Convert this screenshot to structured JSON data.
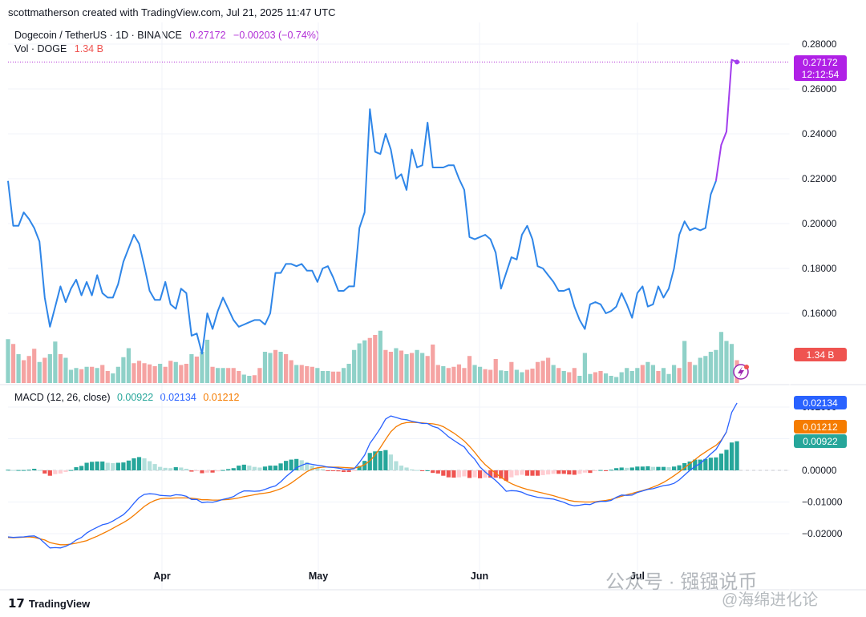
{
  "header": {
    "attribution": "scottmatherson created with TradingView.com, Jul 21, 2025 11:47 UTC"
  },
  "symbol": {
    "name": "Dogecoin / TetherUS · 1D · BINANCE",
    "price": "0.27172",
    "change": "−0.00203 (−0.74%)"
  },
  "volume": {
    "label": "Vol · DOGE",
    "value": "1.34 B"
  },
  "macd": {
    "label": "MACD (12, 26, close)",
    "hist": "0.00922",
    "macd": "0.02134",
    "signal": "0.01212"
  },
  "price_tag": {
    "price": "0.27172",
    "countdown": "12:12:54"
  },
  "vol_tag": "1.34 B",
  "macd_tags": {
    "macd": "0.02134",
    "signal": "0.01212",
    "hist": "0.00922"
  },
  "footer": {
    "brand": "TradingView"
  },
  "watermark": {
    "line1": "公众号 · 镪镪说币",
    "line2": "@海绵进化论"
  },
  "colors": {
    "up": "#26a69a",
    "down": "#ef5350",
    "line": "#2f86e8",
    "line_recent": "#a23ded",
    "macd": "#2962ff",
    "signal": "#f57c00"
  },
  "chart_data": [
    {
      "type": "line",
      "title": "Dogecoin / TetherUS · 1D · BINANCE",
      "x_labels": [
        "Apr",
        "May",
        "Jun",
        "Jul"
      ],
      "y_ticks": [
        0.16,
        0.18,
        0.2,
        0.22,
        0.24,
        0.26,
        0.28
      ],
      "y_tick_labels": [
        "0.16000",
        "0.18000",
        "0.20000",
        "0.22000",
        "0.24000",
        "0.26000",
        "0.28000"
      ],
      "ylim": [
        0.1405,
        0.2875
      ],
      "x": [
        0,
        1,
        2,
        3,
        4,
        5,
        6,
        7,
        8,
        9,
        10,
        11,
        12,
        13,
        14,
        15,
        16,
        17,
        18,
        19,
        20,
        21,
        22,
        23,
        24,
        25,
        26,
        27,
        28,
        29,
        30,
        31,
        32,
        33,
        34,
        35,
        36,
        37,
        38,
        39,
        40,
        41,
        42,
        43,
        44,
        45,
        46,
        47,
        48,
        49,
        50,
        51,
        52,
        53,
        54,
        55,
        56,
        57,
        58,
        59,
        60,
        61,
        62,
        63,
        64,
        65,
        66,
        67,
        68,
        69,
        70,
        71,
        72,
        73,
        74,
        75,
        76,
        77,
        78,
        79,
        80,
        81,
        82,
        83,
        84,
        85,
        86,
        87,
        88,
        89,
        90,
        91,
        92,
        93,
        94,
        95,
        96,
        97,
        98,
        99,
        100,
        101,
        102,
        103,
        104,
        105,
        106,
        107,
        108,
        109,
        110,
        111,
        112,
        113,
        114,
        115,
        116,
        117,
        118,
        119,
        120,
        121,
        122,
        123,
        124,
        125,
        126,
        127,
        128,
        129,
        130,
        131,
        132,
        133,
        134,
        135,
        136,
        137,
        138,
        139
      ],
      "close": [
        0.219,
        0.199,
        0.199,
        0.205,
        0.202,
        0.198,
        0.192,
        0.167,
        0.154,
        0.163,
        0.172,
        0.165,
        0.171,
        0.175,
        0.168,
        0.174,
        0.168,
        0.177,
        0.169,
        0.167,
        0.167,
        0.173,
        0.183,
        0.189,
        0.195,
        0.191,
        0.181,
        0.17,
        0.166,
        0.166,
        0.174,
        0.164,
        0.162,
        0.171,
        0.169,
        0.15,
        0.151,
        0.142,
        0.16,
        0.153,
        0.161,
        0.167,
        0.162,
        0.157,
        0.154,
        0.155,
        0.156,
        0.157,
        0.157,
        0.155,
        0.16,
        0.178,
        0.178,
        0.182,
        0.182,
        0.181,
        0.182,
        0.179,
        0.179,
        0.174,
        0.18,
        0.181,
        0.176,
        0.17,
        0.17,
        0.172,
        0.172,
        0.198,
        0.205,
        0.251,
        0.232,
        0.231,
        0.24,
        0.233,
        0.22,
        0.222,
        0.215,
        0.233,
        0.225,
        0.226,
        0.245,
        0.225,
        0.225,
        0.225,
        0.226,
        0.226,
        0.22,
        0.215,
        0.194,
        0.193,
        0.194,
        0.195,
        0.193,
        0.187,
        0.171,
        0.178,
        0.185,
        0.184,
        0.195,
        0.199,
        0.193,
        0.181,
        0.18,
        0.177,
        0.174,
        0.17,
        0.17,
        0.171,
        0.163,
        0.157,
        0.153,
        0.164,
        0.165,
        0.164,
        0.16,
        0.161,
        0.163,
        0.169,
        0.164,
        0.158,
        0.169,
        0.172,
        0.163,
        0.164,
        0.172,
        0.167,
        0.171,
        0.18,
        0.195,
        0.201,
        0.197,
        0.198,
        0.197,
        0.198,
        0.213,
        0.219,
        0.235,
        0.241,
        0.273,
        0.272
      ]
    },
    {
      "type": "bar",
      "title": "Vol · DOGE",
      "series_name": "Volume",
      "last_value": "1.34 B",
      "relative_volume": [
        0.73,
        0.65,
        0.48,
        0.38,
        0.45,
        0.57,
        0.35,
        0.42,
        0.48,
        0.69,
        0.48,
        0.42,
        0.22,
        0.25,
        0.23,
        0.27,
        0.27,
        0.25,
        0.3,
        0.2,
        0.16,
        0.27,
        0.43,
        0.58,
        0.33,
        0.37,
        0.33,
        0.31,
        0.28,
        0.32,
        0.27,
        0.37,
        0.35,
        0.3,
        0.32,
        0.48,
        0.44,
        0.52,
        0.72,
        0.27,
        0.25,
        0.25,
        0.25,
        0.25,
        0.2,
        0.14,
        0.12,
        0.13,
        0.25,
        0.52,
        0.5,
        0.55,
        0.52,
        0.48,
        0.38,
        0.3,
        0.3,
        0.28,
        0.27,
        0.25,
        0.2,
        0.2,
        0.19,
        0.19,
        0.25,
        0.32,
        0.55,
        0.66,
        0.71,
        0.75,
        0.8,
        0.87,
        0.55,
        0.52,
        0.58,
        0.54,
        0.48,
        0.5,
        0.55,
        0.5,
        0.45,
        0.64,
        0.3,
        0.28,
        0.25,
        0.27,
        0.31,
        0.25,
        0.45,
        0.3,
        0.27,
        0.23,
        0.22,
        0.4,
        0.21,
        0.2,
        0.35,
        0.22,
        0.18,
        0.22,
        0.24,
        0.35,
        0.37,
        0.42,
        0.3,
        0.25,
        0.2,
        0.18,
        0.25,
        0.12,
        0.5,
        0.15,
        0.18,
        0.2,
        0.16,
        0.12,
        0.1,
        0.18,
        0.25,
        0.2,
        0.25,
        0.3,
        0.35,
        0.3,
        0.2,
        0.25,
        0.15,
        0.3,
        0.25,
        0.7,
        0.35,
        0.3,
        0.42,
        0.45,
        0.52,
        0.55,
        0.85,
        0.7,
        0.65,
        0.38
      ],
      "up": [
        1,
        0,
        1,
        0,
        0,
        0,
        1,
        0,
        1,
        1,
        0,
        1,
        1,
        1,
        0,
        1,
        0,
        1,
        0,
        0,
        1,
        1,
        1,
        1,
        0,
        0,
        0,
        0,
        0,
        1,
        0,
        0,
        1,
        0,
        0,
        1,
        0,
        1,
        1,
        0,
        1,
        1,
        0,
        0,
        0,
        1,
        1,
        0,
        0,
        1,
        1,
        0,
        1,
        0,
        0,
        1,
        0,
        0,
        0,
        1,
        1,
        1,
        0,
        0,
        1,
        1,
        1,
        1,
        1,
        0,
        0,
        1,
        0,
        0,
        1,
        0,
        1,
        0,
        1,
        1,
        0,
        0,
        0,
        1,
        0,
        0,
        0,
        0,
        0,
        1,
        1,
        0,
        0,
        0,
        1,
        1,
        0,
        1,
        1,
        0,
        0,
        0,
        0,
        0,
        1,
        0,
        1,
        0,
        0,
        1,
        1,
        1,
        0,
        0,
        1,
        1,
        1,
        1,
        1,
        1,
        1,
        0,
        1,
        1,
        0,
        1,
        1,
        1,
        0,
        1,
        0,
        1,
        1,
        1,
        1,
        1,
        1,
        1,
        1,
        0
      ]
    },
    {
      "type": "line",
      "title": "MACD (12, 26, close)",
      "y_ticks": [
        -0.02,
        -0.01,
        0,
        0.01,
        0.02
      ],
      "y_tick_labels": [
        "−0.02000",
        "−0.01000",
        "0.00000",
        "0.01000",
        "0.02000"
      ],
      "ylim": [
        -0.0267,
        0.0284
      ],
      "series": [
        {
          "name": "MACD",
          "values": [
            -0.021,
            -0.0212,
            -0.0211,
            -0.021,
            -0.0208,
            -0.0207,
            -0.0215,
            -0.023,
            -0.0245,
            -0.0244,
            -0.0245,
            -0.024,
            -0.0232,
            -0.022,
            -0.0212,
            -0.0198,
            -0.0188,
            -0.018,
            -0.0172,
            -0.0168,
            -0.016,
            -0.015,
            -0.014,
            -0.0124,
            -0.0104,
            -0.0086,
            -0.0076,
            -0.0074,
            -0.0075,
            -0.0079,
            -0.008,
            -0.0081,
            -0.0077,
            -0.0078,
            -0.0082,
            -0.0092,
            -0.0092,
            -0.0102,
            -0.01,
            -0.0101,
            -0.0097,
            -0.0092,
            -0.0088,
            -0.0083,
            -0.0072,
            -0.0065,
            -0.0065,
            -0.0066,
            -0.0065,
            -0.006,
            -0.0054,
            -0.0049,
            -0.0036,
            -0.002,
            -0.0006,
            0.0008,
            0.0016,
            0.0022,
            0.0019,
            0.0016,
            0.0014,
            0.001,
            0.0009,
            0.0007,
            0.0004,
            0.0003,
            0.0005,
            0.0025,
            0.0048,
            0.0085,
            0.0108,
            0.0133,
            0.0162,
            0.0172,
            0.0167,
            0.0162,
            0.016,
            0.0155,
            0.0152,
            0.0148,
            0.0148,
            0.0139,
            0.0134,
            0.0121,
            0.0106,
            0.0095,
            0.0084,
            0.0074,
            0.0052,
            0.0035,
            0.0011,
            -0.0005,
            -0.0019,
            -0.0032,
            -0.0048,
            -0.0066,
            -0.0064,
            -0.0065,
            -0.0069,
            -0.0077,
            -0.0081,
            -0.0085,
            -0.0087,
            -0.0089,
            -0.0091,
            -0.0096,
            -0.0101,
            -0.0108,
            -0.0112,
            -0.011,
            -0.0107,
            -0.0108,
            -0.0101,
            -0.0098,
            -0.0098,
            -0.0095,
            -0.0085,
            -0.0078,
            -0.0079,
            -0.0078,
            -0.007,
            -0.0065,
            -0.006,
            -0.0058,
            -0.0053,
            -0.0048,
            -0.0046,
            -0.0041,
            -0.003,
            -0.0015,
            0.0,
            0.0012,
            0.0022,
            0.0036,
            0.0052,
            0.0066,
            0.0093,
            0.0122,
            0.0183,
            0.0213
          ]
        },
        {
          "name": "Signal",
          "values": [
            -0.0212,
            -0.0213,
            -0.0212,
            -0.0211,
            -0.021,
            -0.0212,
            -0.0216,
            -0.022,
            -0.0228,
            -0.0232,
            -0.0235,
            -0.0235,
            -0.0233,
            -0.023,
            -0.0226,
            -0.0222,
            -0.0215,
            -0.0208,
            -0.02,
            -0.0192,
            -0.0183,
            -0.0174,
            -0.0165,
            -0.0155,
            -0.0142,
            -0.0128,
            -0.0114,
            -0.0103,
            -0.0095,
            -0.009,
            -0.0088,
            -0.0088,
            -0.0087,
            -0.0087,
            -0.0087,
            -0.0088,
            -0.009,
            -0.0093,
            -0.0093,
            -0.0094,
            -0.0094,
            -0.0093,
            -0.0092,
            -0.009,
            -0.0087,
            -0.0083,
            -0.008,
            -0.0077,
            -0.0074,
            -0.0072,
            -0.0069,
            -0.0064,
            -0.0058,
            -0.005,
            -0.004,
            -0.0028,
            -0.0016,
            -0.0004,
            0.0004,
            0.0008,
            0.001,
            0.0011,
            0.001,
            0.001,
            0.0009,
            0.0008,
            0.0007,
            0.0011,
            0.0018,
            0.003,
            0.0048,
            0.0072,
            0.0098,
            0.0122,
            0.0138,
            0.0147,
            0.0151,
            0.0152,
            0.0151,
            0.015,
            0.0148,
            0.0147,
            0.0144,
            0.0138,
            0.0128,
            0.0118,
            0.0106,
            0.0093,
            0.0076,
            0.0057,
            0.0036,
            0.0018,
            0.0004,
            -0.0009,
            -0.0022,
            -0.0033,
            -0.0042,
            -0.0049,
            -0.0055,
            -0.006,
            -0.0064,
            -0.0068,
            -0.0072,
            -0.0076,
            -0.008,
            -0.0085,
            -0.009,
            -0.0095,
            -0.0098,
            -0.0099,
            -0.01,
            -0.01,
            -0.0099,
            -0.0097,
            -0.0095,
            -0.0092,
            -0.0087,
            -0.0082,
            -0.0077,
            -0.0073,
            -0.0068,
            -0.0064,
            -0.0059,
            -0.0053,
            -0.0046,
            -0.0038,
            -0.0028,
            -0.0017,
            -0.0005,
            0.0008,
            0.0021,
            0.0034,
            0.0047,
            0.0058,
            0.0069,
            0.0079,
            0.0095,
            0.0121
          ]
        },
        {
          "name": "Histogram",
          "values": [
            0.0002,
            0.0001,
            0.0001,
            0.0001,
            0.0002,
            0.0005,
            0.0001,
            -0.001,
            -0.0017,
            -0.0012,
            -0.001,
            -0.0005,
            0.0001,
            0.001,
            0.0014,
            0.0024,
            0.0027,
            0.0028,
            0.0028,
            0.0024,
            0.0023,
            0.0024,
            0.0025,
            0.0031,
            0.0038,
            0.0042,
            0.0038,
            0.0029,
            0.002,
            0.0011,
            0.0008,
            0.0007,
            0.001,
            0.0009,
            0.0005,
            -0.0004,
            -0.0002,
            -0.0009,
            -0.0007,
            -0.0007,
            -0.0003,
            0.0001,
            0.0004,
            0.0007,
            0.0015,
            0.0018,
            0.0015,
            0.0011,
            0.0009,
            0.0012,
            0.0015,
            0.0015,
            0.0022,
            0.003,
            0.0034,
            0.0036,
            0.0032,
            0.0026,
            0.0015,
            0.0008,
            0.0004,
            -0.0001,
            -0.0001,
            -0.0003,
            -0.0005,
            -0.0005,
            -0.0002,
            0.0014,
            0.003,
            0.0055,
            0.006,
            0.0061,
            0.0064,
            0.005,
            0.0029,
            0.0015,
            0.0009,
            0.0003,
            0.0001,
            -0.0002,
            0.0,
            -0.0008,
            -0.001,
            -0.0017,
            -0.0022,
            -0.0023,
            -0.0022,
            -0.0019,
            -0.0024,
            -0.0022,
            -0.0025,
            -0.0023,
            -0.0023,
            -0.0023,
            -0.0026,
            -0.0033,
            -0.0022,
            -0.0016,
            -0.0014,
            -0.0017,
            -0.0017,
            -0.0017,
            -0.0015,
            -0.0013,
            -0.0011,
            -0.0011,
            -0.0011,
            -0.0013,
            -0.0014,
            -0.0011,
            -0.0007,
            -0.0008,
            -0.0002,
            0.0001,
            -0.0001,
            0.0002,
            0.0007,
            0.0009,
            0.0008,
            0.0009,
            0.0012,
            0.0012,
            0.0013,
            0.0011,
            0.0011,
            0.0011,
            0.001,
            0.0012,
            0.0016,
            0.0023,
            0.0028,
            0.0034,
            0.0034,
            0.0036,
            0.004,
            0.0041,
            0.0053,
            0.0065,
            0.0088,
            0.0092
          ]
        }
      ]
    }
  ]
}
